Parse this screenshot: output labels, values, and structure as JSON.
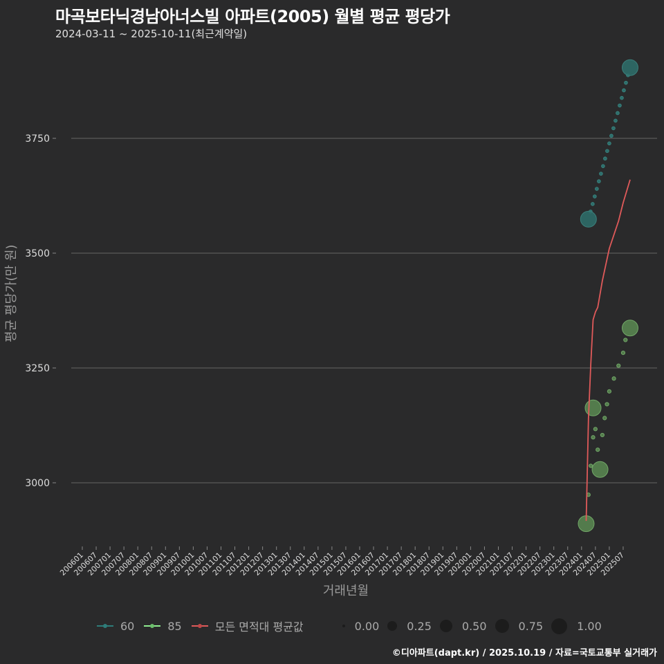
{
  "header": {
    "title": "마곡보타닉경남아너스빌 아파트(2005) 월별 평균 평당가",
    "subtitle": "2024-03-11 ~ 2025-10-11(최근계약일)"
  },
  "axes": {
    "ylabel": "평균 평당가(만 원)",
    "xlabel": "거래년월",
    "yticks": [
      "3000",
      "3250",
      "3500",
      "3750"
    ]
  },
  "legend": {
    "series": [
      {
        "label": "60",
        "color": "#2e7d7a"
      },
      {
        "label": "85",
        "color": "#90ee90"
      },
      {
        "label": "모든 면적대 평균값",
        "color": "#e05a5a"
      }
    ],
    "sizes": [
      "0.00",
      "0.25",
      "0.50",
      "0.75",
      "1.00"
    ]
  },
  "caption": "©디아파트(dapt.kr) / 2025.10.19 / 자료=국토교통부 실거래가",
  "chart_data": {
    "type": "line",
    "title": "마곡보타닉경남아너스빌 아파트(2005) 월별 평균 평당가",
    "subtitle": "2024-03-11 ~ 2025-10-11(최근계약일)",
    "xlabel": "거래년월",
    "ylabel": "평균 평당가(만 원)",
    "x_ticks": [
      "200601",
      "200607",
      "200701",
      "200707",
      "200801",
      "200807",
      "200901",
      "200907",
      "201001",
      "201007",
      "201101",
      "201107",
      "201201",
      "201207",
      "201301",
      "201307",
      "201401",
      "201407",
      "201501",
      "201507",
      "201601",
      "201607",
      "201701",
      "201707",
      "201801",
      "201807",
      "201901",
      "201907",
      "202001",
      "202007",
      "202101",
      "202107",
      "202201",
      "202207",
      "202301",
      "202307",
      "202401",
      "202407",
      "202501",
      "202507"
    ],
    "y_ticks": [
      3000,
      3250,
      3500,
      3750
    ],
    "ylim": [
      2870,
      3980
    ],
    "grid": true,
    "legend_position": "bottom",
    "series": [
      {
        "name": "60",
        "type": "scatter+dotted-trend",
        "color": "#2e7d7a",
        "points": [
          {
            "x": "202404",
            "y": 3574,
            "size": 1.0
          },
          {
            "x": "202510",
            "y": 3904,
            "size": 1.0
          }
        ]
      },
      {
        "name": "85",
        "type": "scatter",
        "color": "#90ee90",
        "points": [
          {
            "x": "202403",
            "y": 2911,
            "size": 1.0
          },
          {
            "x": "202404",
            "y": 2974,
            "size": 0.1
          },
          {
            "x": "202405",
            "y": 3037,
            "size": 0.1
          },
          {
            "x": "202406",
            "y": 3099,
            "size": 0.1
          },
          {
            "x": "202406",
            "y": 3163,
            "size": 1.0
          },
          {
            "x": "202407",
            "y": 3117,
            "size": 0.1
          },
          {
            "x": "202408",
            "y": 3072,
            "size": 0.1
          },
          {
            "x": "202409",
            "y": 3029,
            "size": 1.0
          },
          {
            "x": "202410",
            "y": 3104,
            "size": 0.1
          },
          {
            "x": "202411",
            "y": 3141,
            "size": 0.1
          },
          {
            "x": "202412",
            "y": 3171,
            "size": 0.1
          },
          {
            "x": "202501",
            "y": 3199,
            "size": 0.1
          },
          {
            "x": "202503",
            "y": 3227,
            "size": 0.1
          },
          {
            "x": "202505",
            "y": 3255,
            "size": 0.1
          },
          {
            "x": "202507",
            "y": 3283,
            "size": 0.1
          },
          {
            "x": "202508",
            "y": 3311,
            "size": 0.1
          },
          {
            "x": "202510",
            "y": 3337,
            "size": 1.0
          }
        ]
      },
      {
        "name": "모든 면적대 평균값",
        "type": "line",
        "color": "#e05a5a",
        "points": [
          {
            "x": "202403",
            "y": 2917
          },
          {
            "x": "202404",
            "y": 3140
          },
          {
            "x": "202405",
            "y": 3260
          },
          {
            "x": "202406",
            "y": 3355
          },
          {
            "x": "202407",
            "y": 3372
          },
          {
            "x": "202408",
            "y": 3382
          },
          {
            "x": "202410",
            "y": 3440
          },
          {
            "x": "202501",
            "y": 3510
          },
          {
            "x": "202505",
            "y": 3570
          },
          {
            "x": "202507",
            "y": 3610
          },
          {
            "x": "202510",
            "y": 3660
          }
        ]
      }
    ],
    "size_legend": [
      "0.00",
      "0.25",
      "0.50",
      "0.75",
      "1.00"
    ]
  }
}
